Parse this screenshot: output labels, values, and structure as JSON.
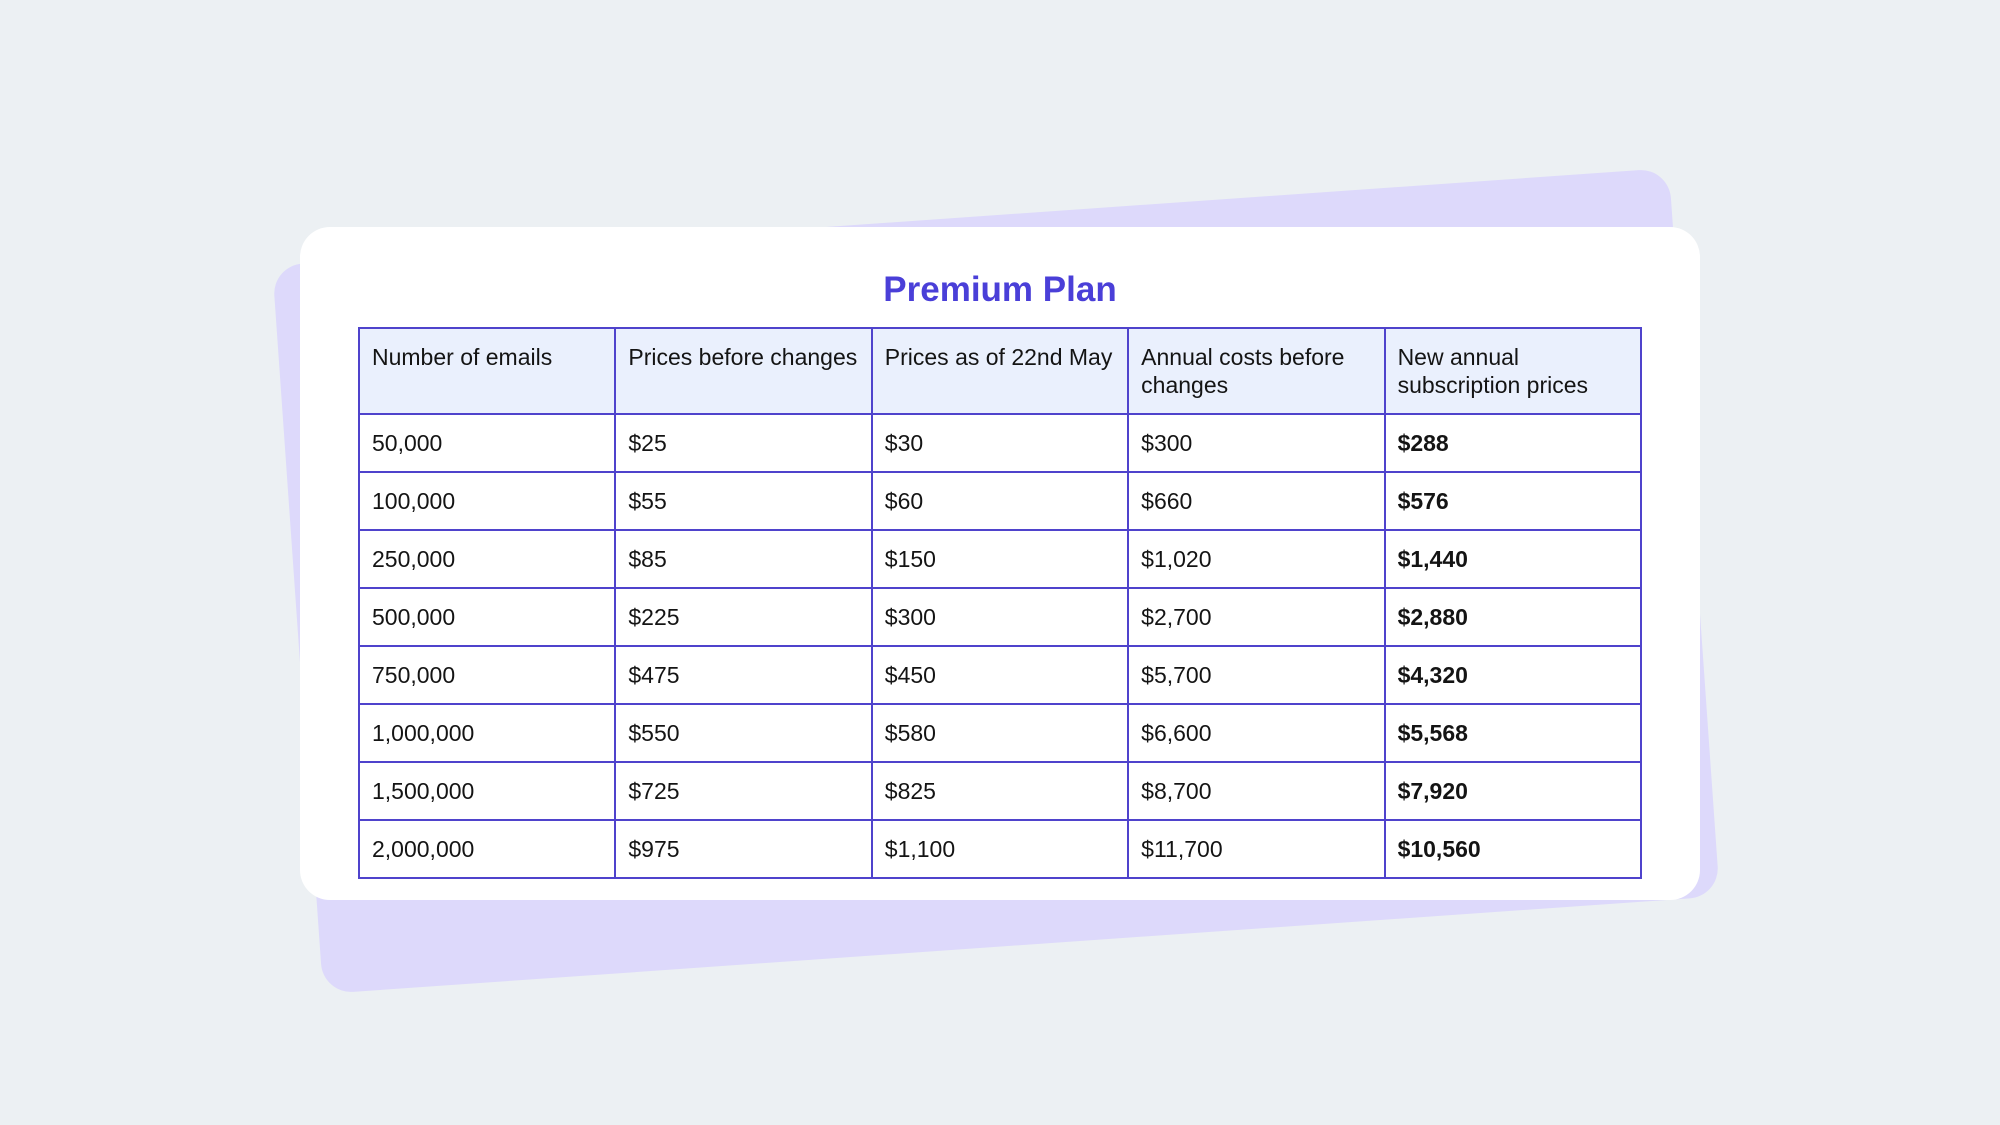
{
  "colors": {
    "background": "#ecf0f3",
    "backdrop_card": "#ddd9fb",
    "card": "#ffffff",
    "title": "#4a3fd8",
    "table_border": "#4f43cc",
    "header_fill": "#eaf0fd",
    "text": "#141414"
  },
  "title": "Premium Plan",
  "table": {
    "headers": [
      "Number of emails",
      "Prices before changes",
      "Prices as of 22nd May",
      "Annual costs before changes",
      "New annual subscription prices"
    ],
    "rows": [
      [
        "50,000",
        "$25",
        "$30",
        "$300",
        "$288"
      ],
      [
        "100,000",
        "$55",
        "$60",
        "$660",
        "$576"
      ],
      [
        "250,000",
        "$85",
        "$150",
        "$1,020",
        "$1,440"
      ],
      [
        "500,000",
        "$225",
        "$300",
        "$2,700",
        "$2,880"
      ],
      [
        "750,000",
        "$475",
        "$450",
        "$5,700",
        "$4,320"
      ],
      [
        "1,000,000",
        "$550",
        "$580",
        "$6,600",
        "$5,568"
      ],
      [
        "1,500,000",
        "$725",
        "$825",
        "$8,700",
        "$7,920"
      ],
      [
        "2,000,000",
        "$975",
        "$1,100",
        "$11,700",
        "$10,560"
      ]
    ],
    "emphasized_column": 4
  }
}
